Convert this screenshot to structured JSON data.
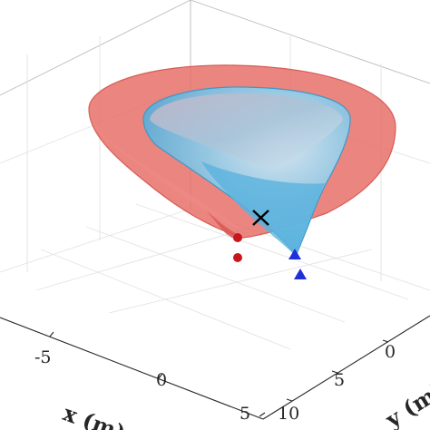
{
  "chart_data": {
    "type": "3d-surface",
    "xlabel": "x (m)",
    "ylabel": "y (m)",
    "x_ticks": [
      -5,
      0,
      5
    ],
    "y_ticks": [
      0,
      5,
      10
    ],
    "grid": true,
    "colors": {
      "red_cone": "#e8706a",
      "red_cone_edge": "#d85c56",
      "blue_cone": "#63b9e0",
      "blue_cone_edge": "#3f97c6",
      "red_marker": "#c8171c",
      "blue_marker": "#1f2fd9",
      "cross_marker": "#000000"
    },
    "markers": [
      {
        "shape": "circle",
        "color": "red"
      },
      {
        "shape": "circle",
        "color": "red"
      },
      {
        "shape": "triangle",
        "color": "blue"
      },
      {
        "shape": "triangle",
        "color": "blue"
      },
      {
        "shape": "x",
        "color": "black"
      }
    ]
  }
}
